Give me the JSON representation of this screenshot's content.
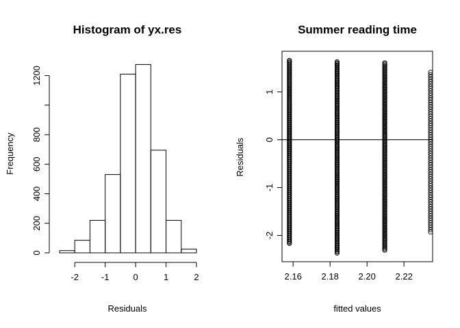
{
  "chart_data": [
    {
      "type": "histogram",
      "title": "Histogram of yx.res",
      "xlabel": "Residuals",
      "ylabel": "Frequency",
      "bin_edges": [
        -2.5,
        -2.0,
        -1.5,
        -1.0,
        -0.5,
        0.0,
        0.5,
        1.0,
        1.5,
        2.0
      ],
      "values": [
        15,
        85,
        220,
        530,
        1210,
        1275,
        695,
        220,
        25
      ],
      "xlim": [
        -2.5,
        2.0
      ],
      "ylim": [
        0,
        1300
      ],
      "xticks": [
        -2,
        -1,
        0,
        1,
        2
      ],
      "xtick_labels": [
        "-2",
        "-1",
        "0",
        "1",
        "2"
      ],
      "yticks": [
        0,
        200,
        400,
        600,
        800,
        1200
      ],
      "ytick_labels": [
        "0",
        "200",
        "400",
        "600",
        "800",
        "1200"
      ],
      "yticks_unlabeled": [
        1000
      ],
      "grid": false
    },
    {
      "type": "scatter",
      "title": "Summer reading time",
      "xlabel": "fitted values",
      "ylabel": "Residuals",
      "xlim": [
        2.154,
        2.2355
      ],
      "ylim": [
        -2.55,
        1.85
      ],
      "xticks": [
        2.16,
        2.18,
        2.2,
        2.22
      ],
      "xtick_labels": [
        "2.16",
        "2.18",
        "2.20",
        "2.22"
      ],
      "yticks": [
        -2,
        -1,
        0,
        1
      ],
      "ytick_labels": [
        "-2",
        "-1",
        "0",
        "1"
      ],
      "reference_line_y": 0,
      "columns": [
        {
          "x": 2.158,
          "y_min": -2.17,
          "y_max": 1.66,
          "n": 180
        },
        {
          "x": 2.1838,
          "y_min": -2.37,
          "y_max": 1.63,
          "n": 180
        },
        {
          "x": 2.2096,
          "y_min": -2.31,
          "y_max": 1.61,
          "n": 170
        },
        {
          "x": 2.2344,
          "y_min": -1.93,
          "y_max": 1.41,
          "n": 70
        }
      ],
      "point_shape": "open-circle",
      "grid": false
    }
  ]
}
